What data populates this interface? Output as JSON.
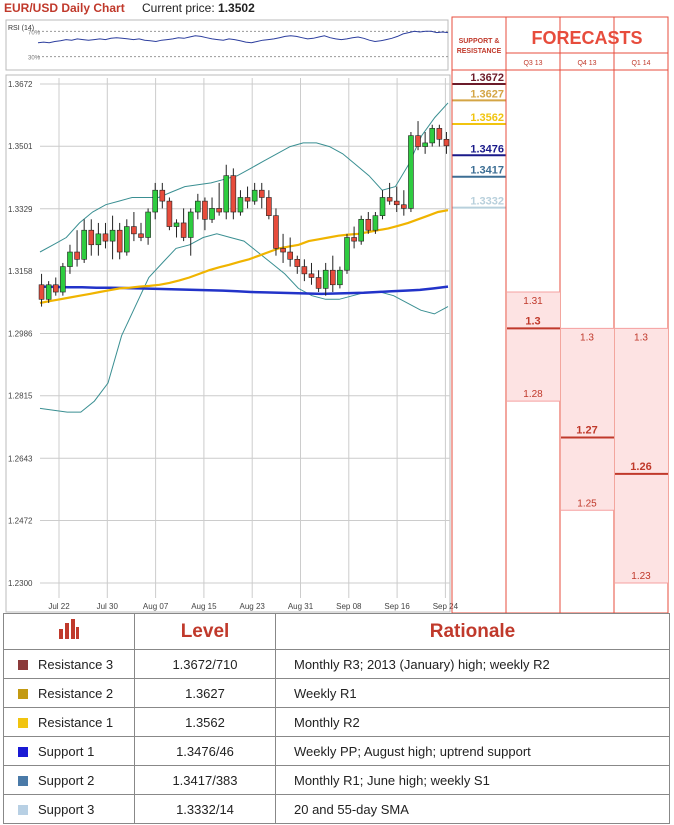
{
  "header": {
    "title": "EUR/USD Daily Chart",
    "price_label": "Current price:",
    "price": "1.3502"
  },
  "rsi": {
    "label": "RSI (14)",
    "level_hi": "70%",
    "level_lo": "30%",
    "values": [
      52,
      53,
      52,
      54,
      55,
      57,
      56,
      58,
      57,
      56,
      57,
      58,
      57,
      59,
      60,
      59,
      58,
      57,
      58,
      56,
      55,
      54,
      56,
      57,
      58,
      60,
      59,
      61,
      63,
      62,
      60,
      58,
      57,
      56,
      58,
      57,
      55,
      53,
      52,
      54,
      56,
      57,
      58,
      60,
      62,
      63,
      62,
      60,
      58,
      59,
      61,
      63,
      60,
      58,
      57,
      58,
      60,
      61,
      59,
      56,
      54,
      55,
      57,
      59,
      62,
      66,
      68,
      70,
      69,
      70,
      70,
      68,
      69,
      68
    ]
  },
  "chart_data": {
    "type": "candlestick",
    "title": "EUR/USD Daily Chart",
    "ylim": [
      1.23,
      1.3672
    ],
    "y_ticks": [
      "1.3672",
      "1.3501",
      "1.3329",
      "1.3158",
      "1.2986",
      "1.2815",
      "1.2643",
      "1.2472",
      "1.2300"
    ],
    "x_ticks": [
      "Jul 22",
      "Jul 30",
      "Aug 07",
      "Aug 15",
      "Aug 23",
      "Aug 31",
      "Sep 08",
      "Sep 16",
      "Sep 24"
    ],
    "candles_ohlc": [
      [
        1.312,
        1.315,
        1.306,
        1.308
      ],
      [
        1.308,
        1.313,
        1.307,
        1.312
      ],
      [
        1.312,
        1.314,
        1.309,
        1.31
      ],
      [
        1.31,
        1.318,
        1.309,
        1.317
      ],
      [
        1.317,
        1.323,
        1.315,
        1.321
      ],
      [
        1.321,
        1.327,
        1.317,
        1.319
      ],
      [
        1.319,
        1.33,
        1.318,
        1.327
      ],
      [
        1.327,
        1.33,
        1.32,
        1.323
      ],
      [
        1.323,
        1.329,
        1.32,
        1.326
      ],
      [
        1.326,
        1.329,
        1.322,
        1.324
      ],
      [
        1.324,
        1.331,
        1.319,
        1.327
      ],
      [
        1.327,
        1.329,
        1.319,
        1.321
      ],
      [
        1.321,
        1.33,
        1.32,
        1.328
      ],
      [
        1.328,
        1.332,
        1.324,
        1.326
      ],
      [
        1.326,
        1.329,
        1.324,
        1.325
      ],
      [
        1.325,
        1.333,
        1.323,
        1.332
      ],
      [
        1.332,
        1.34,
        1.33,
        1.338
      ],
      [
        1.338,
        1.34,
        1.333,
        1.335
      ],
      [
        1.335,
        1.336,
        1.327,
        1.328
      ],
      [
        1.328,
        1.33,
        1.325,
        1.329
      ],
      [
        1.329,
        1.333,
        1.324,
        1.325
      ],
      [
        1.325,
        1.333,
        1.32,
        1.332
      ],
      [
        1.332,
        1.337,
        1.33,
        1.335
      ],
      [
        1.335,
        1.336,
        1.327,
        1.33
      ],
      [
        1.33,
        1.336,
        1.329,
        1.333
      ],
      [
        1.333,
        1.34,
        1.331,
        1.332
      ],
      [
        1.332,
        1.345,
        1.33,
        1.342
      ],
      [
        1.342,
        1.344,
        1.33,
        1.332
      ],
      [
        1.332,
        1.338,
        1.331,
        1.336
      ],
      [
        1.336,
        1.339,
        1.333,
        1.335
      ],
      [
        1.335,
        1.34,
        1.334,
        1.338
      ],
      [
        1.338,
        1.34,
        1.333,
        1.336
      ],
      [
        1.336,
        1.338,
        1.33,
        1.331
      ],
      [
        1.331,
        1.333,
        1.32,
        1.322
      ],
      [
        1.322,
        1.326,
        1.318,
        1.321
      ],
      [
        1.321,
        1.325,
        1.317,
        1.319
      ],
      [
        1.319,
        1.32,
        1.315,
        1.317
      ],
      [
        1.317,
        1.319,
        1.313,
        1.315
      ],
      [
        1.315,
        1.318,
        1.312,
        1.314
      ],
      [
        1.314,
        1.316,
        1.31,
        1.311
      ],
      [
        1.311,
        1.318,
        1.309,
        1.316
      ],
      [
        1.316,
        1.32,
        1.31,
        1.312
      ],
      [
        1.312,
        1.317,
        1.311,
        1.316
      ],
      [
        1.316,
        1.326,
        1.315,
        1.325
      ],
      [
        1.325,
        1.328,
        1.322,
        1.324
      ],
      [
        1.324,
        1.331,
        1.323,
        1.33
      ],
      [
        1.33,
        1.332,
        1.326,
        1.327
      ],
      [
        1.327,
        1.332,
        1.326,
        1.331
      ],
      [
        1.331,
        1.338,
        1.33,
        1.336
      ],
      [
        1.336,
        1.34,
        1.334,
        1.335
      ],
      [
        1.335,
        1.339,
        1.332,
        1.334
      ],
      [
        1.334,
        1.338,
        1.331,
        1.333
      ],
      [
        1.333,
        1.354,
        1.332,
        1.353
      ],
      [
        1.353,
        1.357,
        1.349,
        1.35
      ],
      [
        1.35,
        1.354,
        1.348,
        1.351
      ],
      [
        1.351,
        1.356,
        1.35,
        1.355
      ],
      [
        1.355,
        1.356,
        1.35,
        1.352
      ],
      [
        1.352,
        1.354,
        1.348,
        1.3502
      ]
    ],
    "sma20": [
      1.307,
      1.3075,
      1.308,
      1.3085,
      1.309,
      1.3095,
      1.31,
      1.3105,
      1.311,
      1.3112,
      1.3115,
      1.3117,
      1.312,
      1.3125,
      1.3132,
      1.314,
      1.315,
      1.316,
      1.3168,
      1.3175,
      1.3183,
      1.319,
      1.32,
      1.321,
      1.322,
      1.3225,
      1.323,
      1.324,
      1.3245,
      1.325,
      1.3255,
      1.3258,
      1.326,
      1.3265,
      1.327,
      1.3275,
      1.3282,
      1.329,
      1.33,
      1.331,
      1.332,
      1.3325
    ],
    "sma55": [
      1.3115,
      1.3114,
      1.3113,
      1.3113,
      1.3112,
      1.3112,
      1.3111,
      1.311,
      1.3109,
      1.3108,
      1.3107,
      1.3106,
      1.3105,
      1.3104,
      1.3102,
      1.31,
      1.3099,
      1.3098,
      1.3097,
      1.3096,
      1.3095,
      1.3096,
      1.3097,
      1.3098,
      1.31,
      1.3102,
      1.3104,
      1.3106,
      1.311,
      1.3115
    ],
    "bb_upper": [
      1.321,
      1.323,
      1.325,
      1.329,
      1.332,
      1.334,
      1.335,
      1.336,
      1.336,
      1.336,
      1.3375,
      1.339,
      1.3395,
      1.34,
      1.341,
      1.342,
      1.344,
      1.346,
      1.348,
      1.35,
      1.351,
      1.351,
      1.35,
      1.348,
      1.345,
      1.342,
      1.338,
      1.339,
      1.345,
      1.353,
      1.358,
      1.362
    ],
    "bb_lower": [
      1.278,
      1.2775,
      1.277,
      1.277,
      1.28,
      1.285,
      1.298,
      1.306,
      1.314,
      1.318,
      1.322,
      1.323,
      1.325,
      1.326,
      1.325,
      1.324,
      1.321,
      1.318,
      1.315,
      1.311,
      1.309,
      1.308,
      1.308,
      1.309,
      1.31,
      1.31,
      1.309,
      1.307,
      1.305,
      1.304,
      1.306
    ],
    "support_resistance": [
      {
        "value": 1.3672,
        "label": "1.3672",
        "color": "#6b1b2a"
      },
      {
        "value": 1.3627,
        "label": "1.3627",
        "color": "#d4a545"
      },
      {
        "value": 1.3562,
        "label": "1.3562",
        "color": "#f1c40f"
      },
      {
        "value": 1.3476,
        "label": "1.3476",
        "color": "#1a1a8a"
      },
      {
        "value": 1.3417,
        "label": "1.3417",
        "color": "#3c6e94"
      },
      {
        "value": 1.3332,
        "label": "1.3332",
        "color": "#b8d0dc"
      }
    ],
    "forecasts": [
      {
        "period": "Q3 13",
        "high": 1.31,
        "median": 1.3,
        "low": 1.28,
        "high_label": "1.31",
        "median_label": "1.3",
        "low_label": "1.28"
      },
      {
        "period": "Q4 13",
        "high": 1.3,
        "median": 1.27,
        "low": 1.25,
        "high_label": "1.3",
        "median_label": "1.27",
        "low_label": "1.25"
      },
      {
        "period": "Q1 14",
        "high": 1.3,
        "median": 1.26,
        "low": 1.23,
        "high_label": "1.3",
        "median_label": "1.26",
        "low_label": "1.23"
      }
    ]
  },
  "forecast_panel": {
    "sr_header": "SUPPORT & RESISTANCE",
    "title": "FORECASTS"
  },
  "legend": {
    "headers": {
      "level": "Level",
      "rationale": "Rationale"
    },
    "rows": [
      {
        "name": "Resistance 3",
        "level": "1.3672/710",
        "rationale": "Monthly R3; 2013 (January) high; weekly R2",
        "color": "#8b3a3a"
      },
      {
        "name": "Resistance 2",
        "level": "1.3627",
        "rationale": "Weekly R1",
        "color": "#c39a12"
      },
      {
        "name": "Resistance 1",
        "level": "1.3562",
        "rationale": "Monthly R2",
        "color": "#f1c40f"
      },
      {
        "name": "Support 1",
        "level": "1.3476/46",
        "rationale": "Weekly PP; August high; uptrend support",
        "color": "#1a1ad4"
      },
      {
        "name": "Support 2",
        "level": "1.3417/383",
        "rationale": "Monthly R1; June high; weekly S1",
        "color": "#4a7aa8"
      },
      {
        "name": "Support 3",
        "level": "1.3332/14",
        "rationale": "20 and 55-day SMA",
        "color": "#b8d0e4"
      }
    ]
  }
}
